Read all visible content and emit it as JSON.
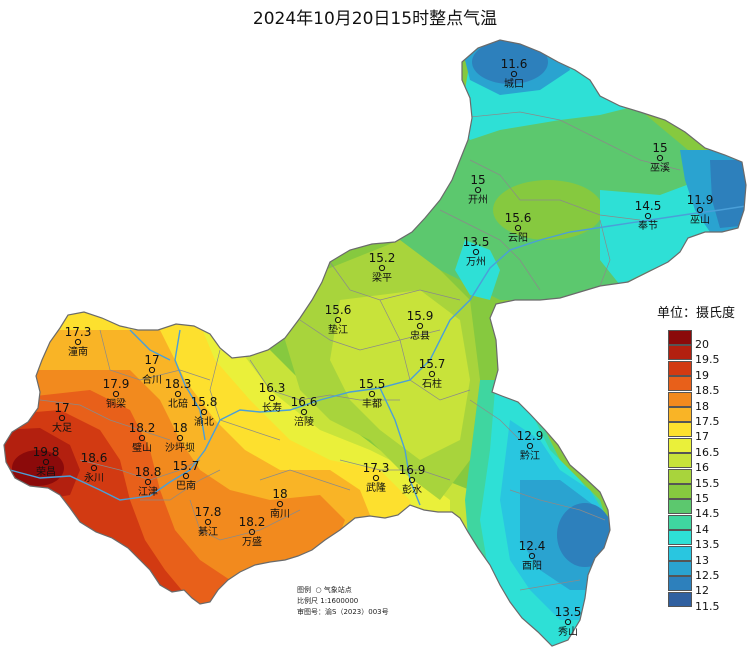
{
  "title": "2024年10月20日15时整点气温",
  "legend": {
    "title": "单位：摄氏度",
    "items": [
      {
        "label": "20",
        "color": "#8b0a0a"
      },
      {
        "label": "19.5",
        "color": "#b3200f"
      },
      {
        "label": "19",
        "color": "#d23a12"
      },
      {
        "label": "18.5",
        "color": "#e8601a"
      },
      {
        "label": "18",
        "color": "#f28a1e"
      },
      {
        "label": "17.5",
        "color": "#f9b426"
      },
      {
        "label": "17",
        "color": "#fde02e"
      },
      {
        "label": "16.5",
        "color": "#eaf03a"
      },
      {
        "label": "16",
        "color": "#c8e33a"
      },
      {
        "label": "15.5",
        "color": "#a8d43c"
      },
      {
        "label": "15",
        "color": "#86c93f"
      },
      {
        "label": "14.5",
        "color": "#5cc86e"
      },
      {
        "label": "14",
        "color": "#3fd6a0"
      },
      {
        "label": "13.5",
        "color": "#2ee0d6"
      },
      {
        "label": "13",
        "color": "#29c6e0"
      },
      {
        "label": "12.5",
        "color": "#2aa3d0"
      },
      {
        "label": "12",
        "color": "#2d80bc"
      },
      {
        "label": "11.5",
        "color": "#3060a0"
      }
    ]
  },
  "stations": [
    {
      "name": "城口",
      "value": "11.6"
    },
    {
      "name": "巫溪",
      "value": "15"
    },
    {
      "name": "开州",
      "value": "15"
    },
    {
      "name": "奉节",
      "value": "14.5"
    },
    {
      "name": "巫山",
      "value": "11.9"
    },
    {
      "name": "云阳",
      "value": "15.6"
    },
    {
      "name": "万州",
      "value": "13.5"
    },
    {
      "name": "梁平",
      "value": "15.2"
    },
    {
      "name": "垫江",
      "value": "15.6"
    },
    {
      "name": "忠县",
      "value": "15.9"
    },
    {
      "name": "石柱",
      "value": "15.7"
    },
    {
      "name": "丰都",
      "value": "15.5"
    },
    {
      "name": "长寿",
      "value": "16.3"
    },
    {
      "name": "涪陵",
      "value": "16.6"
    },
    {
      "name": "潼南",
      "value": "17.3"
    },
    {
      "name": "合川",
      "value": "17"
    },
    {
      "name": "铜梁",
      "value": "17.9"
    },
    {
      "name": "北碚",
      "value": "18.3"
    },
    {
      "name": "渝北",
      "value": "15.8"
    },
    {
      "name": "大足",
      "value": "17"
    },
    {
      "name": "璧山",
      "value": "18.2"
    },
    {
      "name": "沙坪坝",
      "value": "18"
    },
    {
      "name": "荣昌",
      "value": "19.8"
    },
    {
      "name": "永川",
      "value": "18.6"
    },
    {
      "name": "江津",
      "value": "18.8"
    },
    {
      "name": "巴南",
      "value": "15.7"
    },
    {
      "name": "綦江",
      "value": "17.8"
    },
    {
      "name": "万盛",
      "value": "18.2"
    },
    {
      "name": "南川",
      "value": "18"
    },
    {
      "name": "武隆",
      "value": "17.3"
    },
    {
      "name": "彭水",
      "value": "16.9"
    },
    {
      "name": "黔江",
      "value": "12.9"
    },
    {
      "name": "酉阳",
      "value": "12.4"
    },
    {
      "name": "秀山",
      "value": "13.5"
    }
  ],
  "info": {
    "legend_label": "图例",
    "station_label": "气象站点",
    "scale_label": "比例尺",
    "scale_value": "1:1600000",
    "approval_label": "审图号：渝S（2023）003号"
  }
}
